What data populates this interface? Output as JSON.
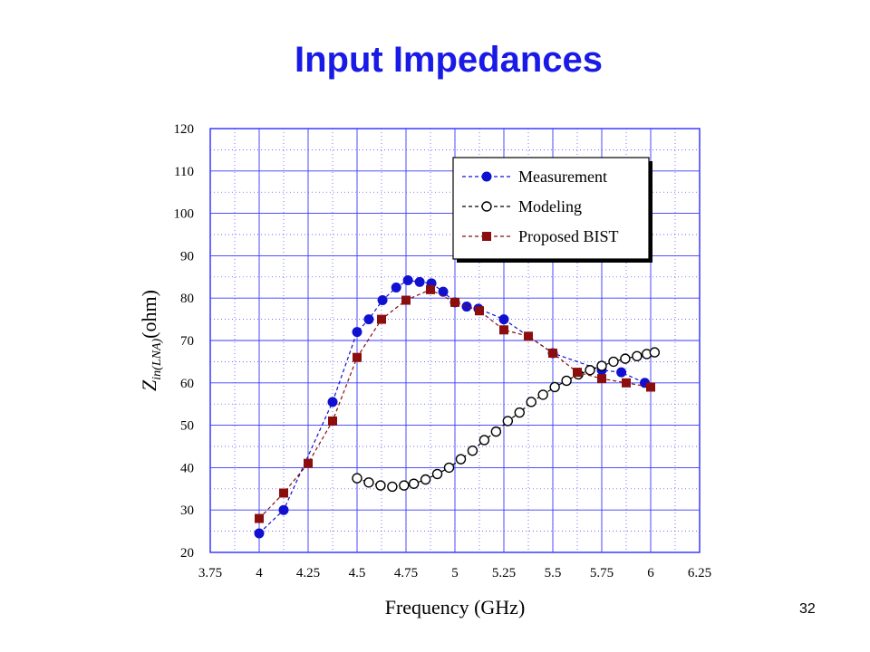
{
  "slide": {
    "title": "Input Impedances",
    "page_number": "32"
  },
  "chart_data": {
    "type": "line",
    "xlabel": "Frequency (GHz)",
    "ylabel_main": "Z",
    "ylabel_sub": "in(LNA)",
    "ylabel_unit": "(ohm)",
    "xlim": [
      3.75,
      6.25
    ],
    "ylim": [
      20,
      120
    ],
    "x_ticks": [
      "3.75",
      "4",
      "4.25",
      "4.5",
      "4.75",
      "5",
      "5.25",
      "5.5",
      "5.75",
      "6",
      "6.25"
    ],
    "y_ticks": [
      "20",
      "30",
      "40",
      "50",
      "60",
      "70",
      "80",
      "90",
      "100",
      "110",
      "120"
    ],
    "x_minor_step": 0.125,
    "y_minor_step": 5,
    "grid": true,
    "legend_placement": "top-right",
    "colors": {
      "measurement": "#1010d0",
      "modeling": "#000000",
      "bist": "#8b0d0d",
      "grid": "#3a3aff"
    },
    "series": [
      {
        "name": "Measurement",
        "marker": "filled-circle",
        "line": "dashed",
        "x": [
          4.0,
          4.125,
          4.375,
          4.5,
          4.56,
          4.63,
          4.7,
          4.76,
          4.82,
          4.88,
          4.94,
          5.0,
          5.06,
          5.12,
          5.25,
          5.5,
          5.75,
          5.85,
          5.97
        ],
        "y": [
          24.5,
          30,
          55.5,
          72,
          75,
          79.5,
          82.5,
          84.2,
          83.8,
          83.5,
          81.5,
          79,
          78,
          77.5,
          75,
          67,
          63,
          62.5,
          60
        ]
      },
      {
        "name": "Modeling",
        "marker": "open-circle",
        "line": "dashed",
        "x": [
          4.5,
          4.56,
          4.62,
          4.68,
          4.74,
          4.79,
          4.85,
          4.91,
          4.97,
          5.03,
          5.09,
          5.15,
          5.21,
          5.27,
          5.33,
          5.39,
          5.45,
          5.51,
          5.57,
          5.63,
          5.69,
          5.75,
          5.81,
          5.87,
          5.93,
          5.98,
          6.02
        ],
        "y": [
          37.5,
          36.5,
          35.8,
          35.5,
          35.8,
          36.2,
          37.2,
          38.5,
          40,
          42,
          44,
          46.5,
          48.5,
          51,
          53,
          55.5,
          57.2,
          59,
          60.5,
          62,
          63,
          64,
          65,
          65.7,
          66.3,
          66.8,
          67.2
        ]
      },
      {
        "name": "Proposed BIST",
        "marker": "filled-square",
        "line": "dashed",
        "x": [
          4.0,
          4.125,
          4.25,
          4.375,
          4.5,
          4.625,
          4.75,
          4.875,
          5.0,
          5.125,
          5.25,
          5.375,
          5.5,
          5.625,
          5.75,
          5.875,
          6.0
        ],
        "y": [
          28,
          34,
          41,
          51,
          66,
          75,
          79.5,
          82,
          79,
          77,
          72.5,
          71,
          67,
          62.5,
          61,
          60,
          59
        ]
      }
    ]
  }
}
